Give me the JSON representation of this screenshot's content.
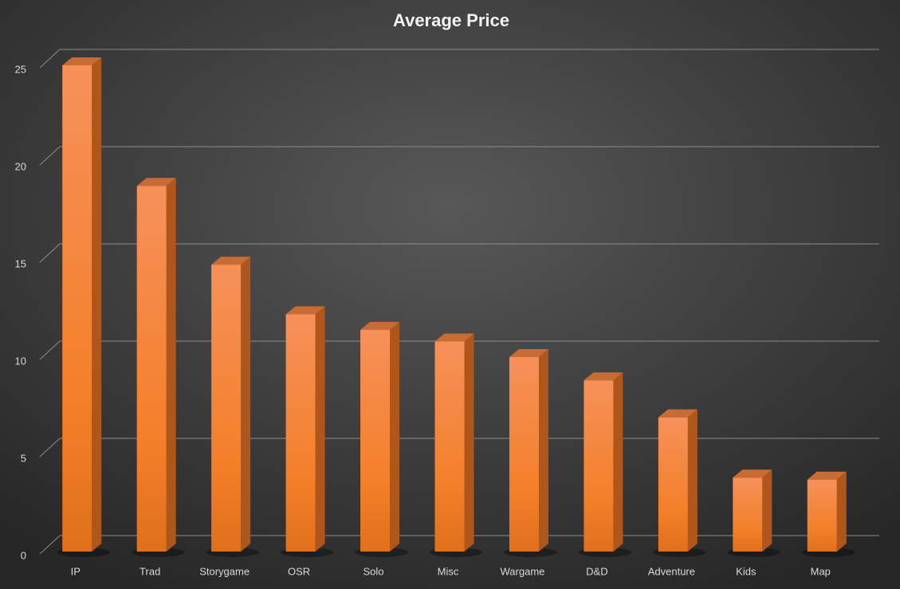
{
  "chart_data": {
    "type": "bar3d",
    "title": "Average Price",
    "categories": [
      "IP",
      "Trad",
      "Storygame",
      "OSR",
      "Solo",
      "Misc",
      "Wargame",
      "D&D",
      "Adventure",
      "Kids",
      "Map"
    ],
    "values": [
      25.0,
      18.8,
      14.75,
      12.2,
      11.4,
      10.8,
      10.0,
      8.8,
      6.9,
      3.8,
      3.7
    ],
    "color": "#f07c24",
    "ylim": [
      0,
      25
    ],
    "yticks": [
      0,
      5,
      10,
      15,
      20,
      25
    ],
    "grid": true
  }
}
